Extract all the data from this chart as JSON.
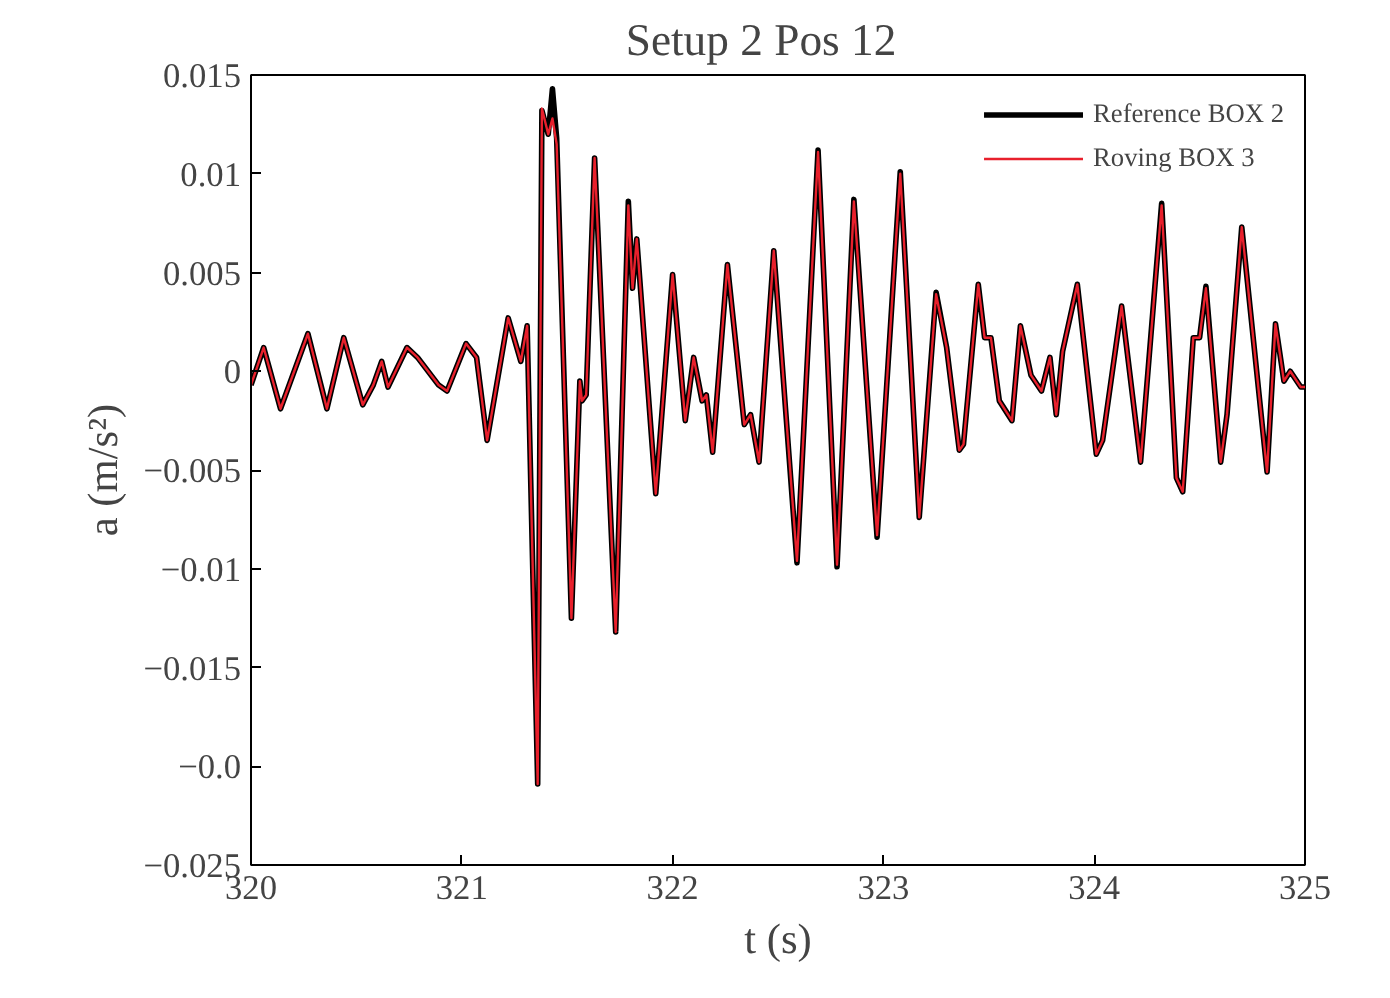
{
  "chart_data": {
    "type": "line",
    "title": "Setup 2    Pos 12",
    "xlabel": "t (s)",
    "ylabel": "a (m/s²)",
    "xlim": [
      320,
      325
    ],
    "xticks": [
      320,
      321,
      322,
      323,
      324,
      325
    ],
    "ylim": [
      -0.025,
      0.015
    ],
    "yticks": [
      {
        "value": -0.025,
        "label": "−0.025"
      },
      {
        "value": -0.02,
        "label": "−0.0"
      },
      {
        "value": -0.015,
        "label": "−0.015"
      },
      {
        "value": -0.01,
        "label": "−0.01"
      },
      {
        "value": -0.005,
        "label": "−0.005"
      },
      0,
      0.005,
      0.01,
      0.015
    ],
    "grid": false,
    "legend": "top right",
    "marker": "none",
    "line_style": "solid",
    "x": [
      320.0,
      320.06,
      320.14,
      320.27,
      320.36,
      320.44,
      320.53,
      320.58,
      320.62,
      320.65,
      320.74,
      320.79,
      320.89,
      320.93,
      321.02,
      321.07,
      321.12,
      321.22,
      321.28,
      321.31,
      321.36,
      321.38,
      321.41,
      321.43,
      321.45,
      321.52,
      321.56,
      321.57,
      321.59,
      321.63,
      321.73,
      321.79,
      321.81,
      321.83,
      321.92,
      322.0,
      322.06,
      322.1,
      322.14,
      322.16,
      322.19,
      322.26,
      322.34,
      322.37,
      322.41,
      322.48,
      322.59,
      322.69,
      322.78,
      322.86,
      322.97,
      323.08,
      323.17,
      323.25,
      323.3,
      323.36,
      323.38,
      323.45,
      323.48,
      323.51,
      323.55,
      323.61,
      323.65,
      323.7,
      323.75,
      323.79,
      323.82,
      323.85,
      323.92,
      324.01,
      324.04,
      324.13,
      324.22,
      324.32,
      324.39,
      324.42,
      324.47,
      324.5,
      324.53,
      324.6,
      324.63,
      324.7,
      324.82,
      324.86,
      324.9,
      324.93,
      324.98,
      325.0
    ],
    "series": [
      {
        "name": "Reference BOX 2",
        "color": "#000000",
        "values": [
          -0.0007,
          0.0012,
          -0.0019,
          0.0019,
          -0.0019,
          0.0017,
          -0.0017,
          -0.0007,
          0.0005,
          -0.0008,
          0.0012,
          0.0007,
          -0.0007,
          -0.001,
          0.0014,
          0.0007,
          -0.0035,
          0.0027,
          0.0005,
          0.0023,
          -0.0209,
          0.0132,
          0.012,
          0.0143,
          0.0118,
          -0.0125,
          -0.0005,
          -0.0015,
          -0.0012,
          0.0108,
          -0.0132,
          0.0086,
          0.0042,
          0.0067,
          -0.0062,
          0.0049,
          -0.0025,
          0.0007,
          -0.0015,
          -0.0012,
          -0.0041,
          0.0054,
          -0.0027,
          -0.0022,
          -0.0046,
          0.0061,
          -0.0097,
          0.0112,
          -0.0099,
          0.0087,
          -0.0084,
          0.0101,
          -0.0074,
          0.004,
          0.0012,
          -0.004,
          -0.0037,
          0.0044,
          0.0017,
          0.0017,
          -0.0015,
          -0.0025,
          0.0023,
          -0.0002,
          -0.001,
          0.0007,
          -0.0022,
          0.001,
          0.0044,
          -0.0042,
          -0.0035,
          0.0033,
          -0.0046,
          0.0085,
          -0.0054,
          -0.0061,
          0.0017,
          0.0017,
          0.0043,
          -0.0046,
          -0.0022,
          0.0073,
          -0.0051,
          0.0024,
          -0.0005,
          0.0,
          -0.0008,
          -0.0008
        ]
      },
      {
        "name": "Roving BOX 3",
        "color": "#e8202c",
        "values": [
          -0.0007,
          0.0012,
          -0.0019,
          0.0019,
          -0.0019,
          0.0017,
          -0.0017,
          -0.0007,
          0.0005,
          -0.0008,
          0.0012,
          0.0007,
          -0.0007,
          -0.001,
          0.0014,
          0.0007,
          -0.0035,
          0.0027,
          0.0005,
          0.0023,
          -0.0209,
          0.0133,
          0.012,
          0.0128,
          0.0115,
          -0.0125,
          -0.0005,
          -0.0015,
          -0.0012,
          0.0108,
          -0.0132,
          0.0084,
          0.0042,
          0.0067,
          -0.0062,
          0.0049,
          -0.0025,
          0.0007,
          -0.0015,
          -0.0012,
          -0.0041,
          0.0054,
          -0.0027,
          -0.0022,
          -0.0046,
          0.0061,
          -0.0096,
          0.0111,
          -0.0098,
          0.0086,
          -0.0083,
          0.01,
          -0.0074,
          0.0039,
          0.0012,
          -0.004,
          -0.0037,
          0.0044,
          0.0017,
          0.0017,
          -0.0015,
          -0.0025,
          0.0023,
          -0.0002,
          -0.001,
          0.0007,
          -0.0022,
          0.001,
          0.0044,
          -0.0042,
          -0.0035,
          0.0033,
          -0.0046,
          0.0084,
          -0.0054,
          -0.0061,
          0.0017,
          0.0017,
          0.0042,
          -0.0046,
          -0.0022,
          0.0073,
          -0.0051,
          0.0024,
          -0.0005,
          0.0,
          -0.0008,
          -0.0008
        ]
      }
    ]
  }
}
